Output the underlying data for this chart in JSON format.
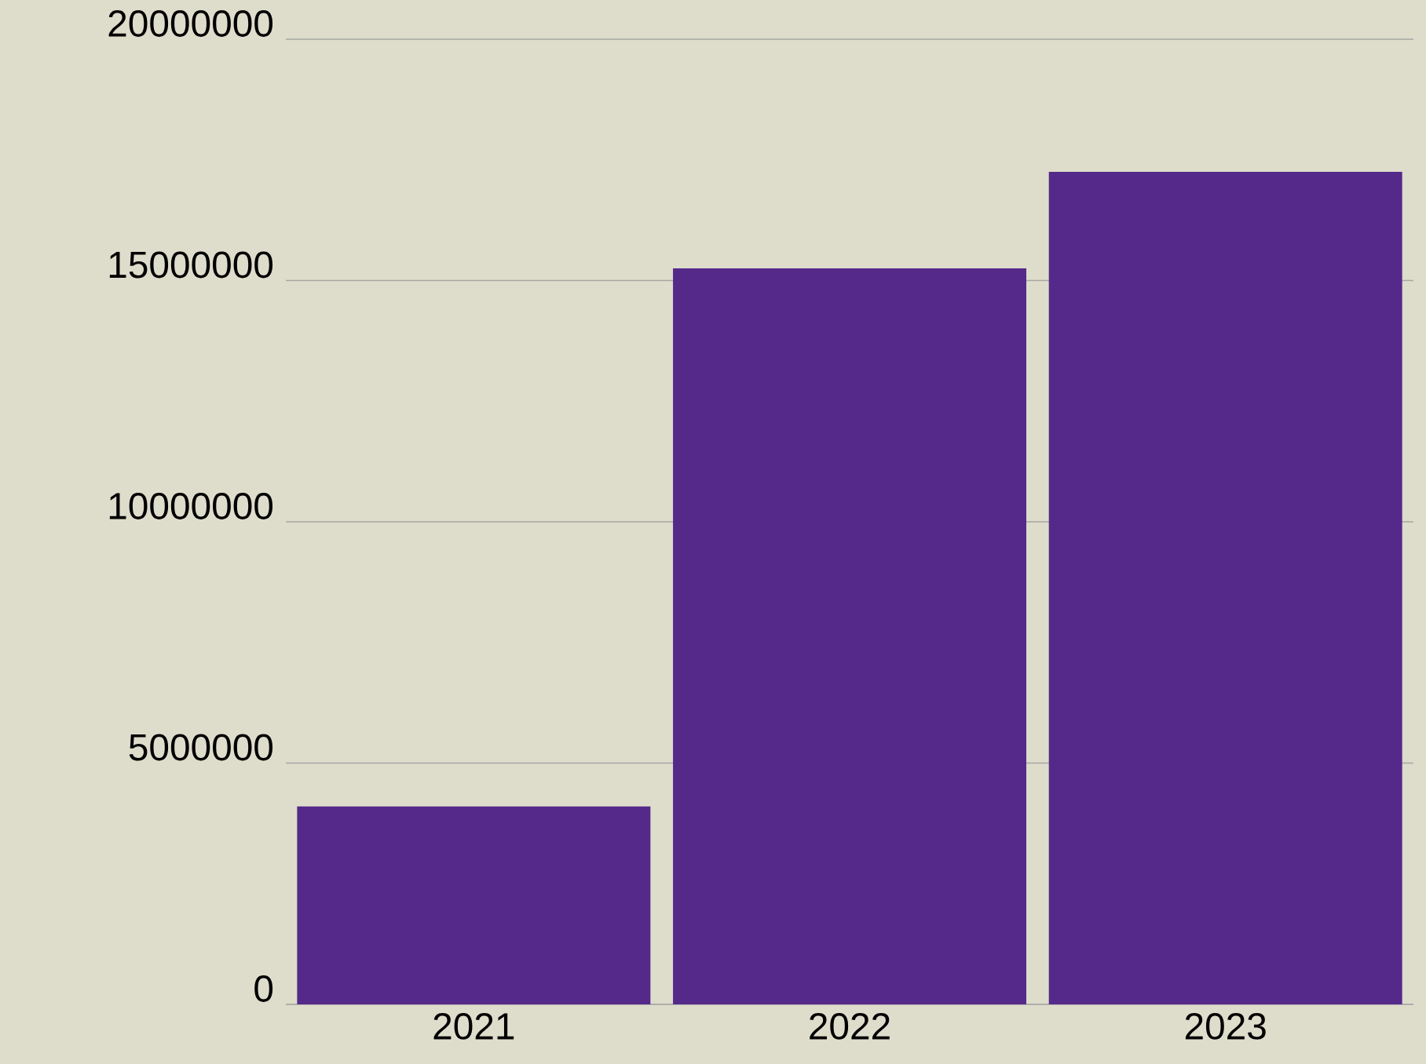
{
  "chart_data": {
    "type": "bar",
    "categories": [
      "2021",
      "2022",
      "2023"
    ],
    "values": [
      4100000,
      15250000,
      17250000
    ],
    "color": "#55298a",
    "ylim": [
      0,
      20000000
    ],
    "yticks": [
      0,
      5000000,
      10000000,
      15000000,
      20000000
    ],
    "grid": "y"
  }
}
